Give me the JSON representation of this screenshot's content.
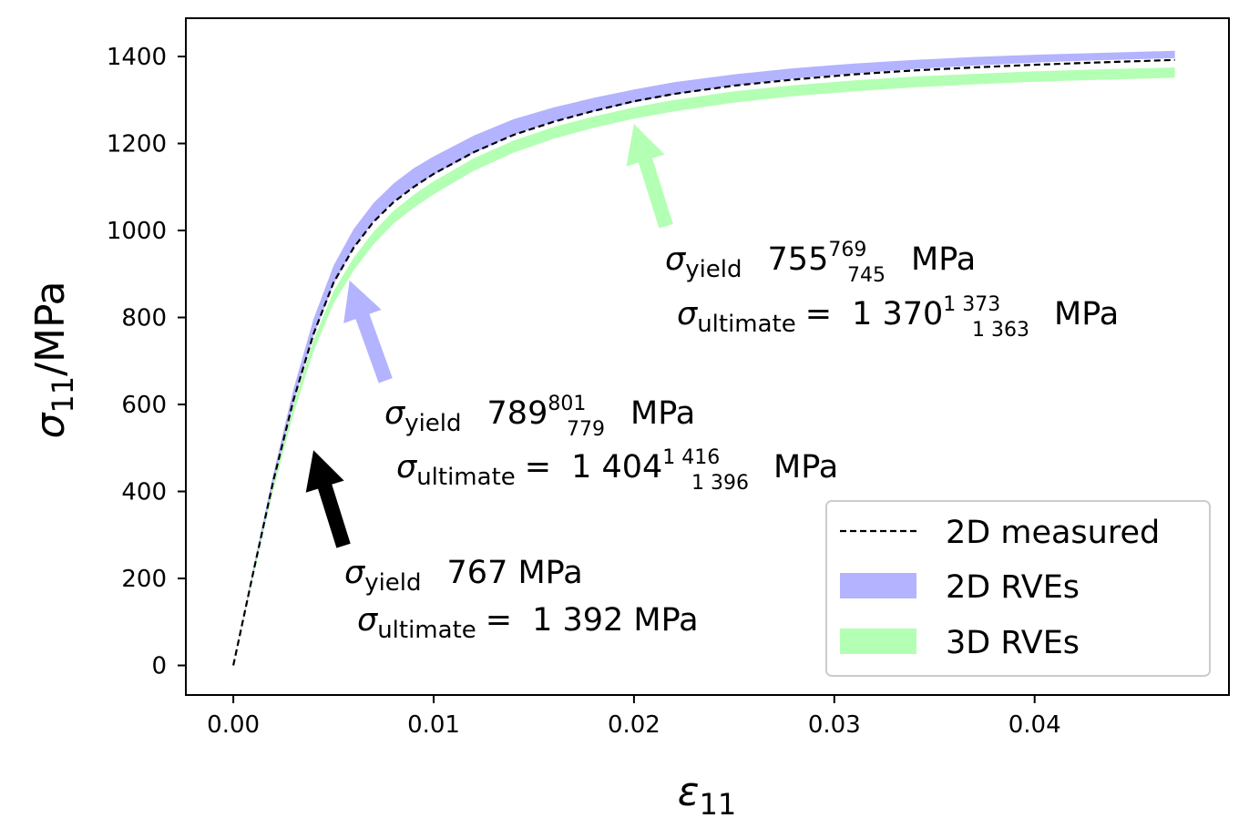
{
  "chart_data": {
    "type": "line",
    "xlabel": {
      "symbol": "ε",
      "sub": "11"
    },
    "ylabel": {
      "symbol": "σ",
      "sub": "11",
      "unit": "/MPa"
    },
    "xlim": [
      -0.00237,
      0.0497
    ],
    "ylim": [
      -68,
      1488
    ],
    "xticks": [
      0.0,
      0.01,
      0.02,
      0.03,
      0.04
    ],
    "xtick_labels": [
      "0.00",
      "0.01",
      "0.02",
      "0.03",
      "0.04"
    ],
    "yticks": [
      0,
      200,
      400,
      600,
      800,
      1000,
      1200,
      1400
    ],
    "ytick_labels": [
      "0",
      "200",
      "400",
      "600",
      "800",
      "1000",
      "1200",
      "1400"
    ],
    "grid": false,
    "legend_position": "lower-right",
    "series": [
      {
        "name": "2D measured",
        "style": "dashed",
        "color": "#000000",
        "x": [
          0,
          0.001,
          0.002,
          0.003,
          0.004,
          0.005,
          0.006,
          0.007,
          0.008,
          0.009,
          0.01,
          0.012,
          0.014,
          0.016,
          0.018,
          0.02,
          0.022,
          0.025,
          0.028,
          0.031,
          0.034,
          0.037,
          0.04,
          0.043,
          0.047
        ],
        "y": [
          0,
          215,
          425,
          610,
          762,
          880,
          960,
          1020,
          1065,
          1100,
          1130,
          1180,
          1220,
          1250,
          1275,
          1297,
          1314,
          1333,
          1347,
          1359,
          1368,
          1375,
          1381,
          1386,
          1392
        ]
      },
      {
        "name": "2D RVEs",
        "style": "band",
        "color": "#b3b3ff",
        "x": [
          0,
          0.001,
          0.002,
          0.003,
          0.004,
          0.005,
          0.006,
          0.007,
          0.008,
          0.009,
          0.01,
          0.012,
          0.014,
          0.016,
          0.018,
          0.02,
          0.022,
          0.025,
          0.028,
          0.031,
          0.034,
          0.037,
          0.04,
          0.043,
          0.047
        ],
        "upper": [
          0,
          223,
          441,
          635,
          796,
          919,
          1003,
          1063,
          1108,
          1143,
          1170,
          1218,
          1256,
          1283,
          1305,
          1324,
          1341,
          1359,
          1373,
          1384,
          1392,
          1399,
          1404,
          1408,
          1413
        ],
        "lower": [
          0,
          212,
          420,
          604,
          758,
          876,
          960,
          1020,
          1066,
          1100,
          1128,
          1178,
          1220,
          1250,
          1274,
          1295,
          1313,
          1333,
          1349,
          1361,
          1371,
          1379,
          1386,
          1391,
          1396
        ]
      },
      {
        "name": "3D RVEs",
        "style": "band",
        "color": "#b3ffb3",
        "x": [
          0,
          0.001,
          0.002,
          0.003,
          0.004,
          0.005,
          0.006,
          0.007,
          0.008,
          0.009,
          0.01,
          0.012,
          0.014,
          0.016,
          0.018,
          0.02,
          0.022,
          0.025,
          0.028,
          0.031,
          0.034,
          0.037,
          0.04,
          0.043,
          0.047
        ],
        "upper": [
          0,
          213,
          420,
          600,
          748,
          860,
          937,
          997,
          1045,
          1082,
          1113,
          1166,
          1207,
          1238,
          1262,
          1283,
          1300,
          1320,
          1334,
          1345,
          1354,
          1360,
          1366,
          1370,
          1375
        ],
        "lower": [
          0,
          205,
          404,
          578,
          722,
          832,
          908,
          968,
          1016,
          1052,
          1083,
          1137,
          1179,
          1211,
          1236,
          1257,
          1274,
          1294,
          1309,
          1320,
          1329,
          1336,
          1342,
          1346,
          1351
        ]
      }
    ],
    "annotations": [
      {
        "id": "measured",
        "arrow_color": "#000000",
        "arrow_tail": [
          0.0055,
          275
        ],
        "arrow_head": [
          0.004,
          495
        ],
        "yield_label": "yield",
        "yield_value": "767 MPa",
        "ultimate_label": "ultimate",
        "ultimate_eq": "=",
        "ultimate_value": "1 392 MPa"
      },
      {
        "id": "rve2d",
        "arrow_color": "#b3b3ff",
        "arrow_tail": [
          0.0076,
          655
        ],
        "arrow_head": [
          0.0058,
          885
        ],
        "yield_label": "yield",
        "yield_main": "789",
        "yield_sup": "801",
        "yield_sub": "779",
        "yield_unit": "MPa",
        "ultimate_label": "ultimate",
        "ultimate_eq": "=",
        "ultimate_main": "1 404",
        "ultimate_sup": "1 416",
        "ultimate_sub": "1 396",
        "ultimate_unit": "MPa"
      },
      {
        "id": "rve3d",
        "arrow_color": "#b3ffb3",
        "arrow_tail": [
          0.0216,
          1010
        ],
        "arrow_head": [
          0.02,
          1245
        ],
        "yield_label": "yield",
        "yield_main": "755",
        "yield_sup": "769",
        "yield_sub": "745",
        "yield_unit": "MPa",
        "ultimate_label": "ultimate",
        "ultimate_eq": "=",
        "ultimate_main": "1 370",
        "ultimate_sup": "1 373",
        "ultimate_sub": "1 363",
        "ultimate_unit": "MPa"
      }
    ],
    "legend": [
      {
        "label": "2D measured",
        "style": "dashed",
        "color": "#000000"
      },
      {
        "label": "2D RVEs",
        "style": "band",
        "color": "#b3b3ff"
      },
      {
        "label": "3D RVEs",
        "style": "band",
        "color": "#b3ffb3"
      }
    ]
  }
}
